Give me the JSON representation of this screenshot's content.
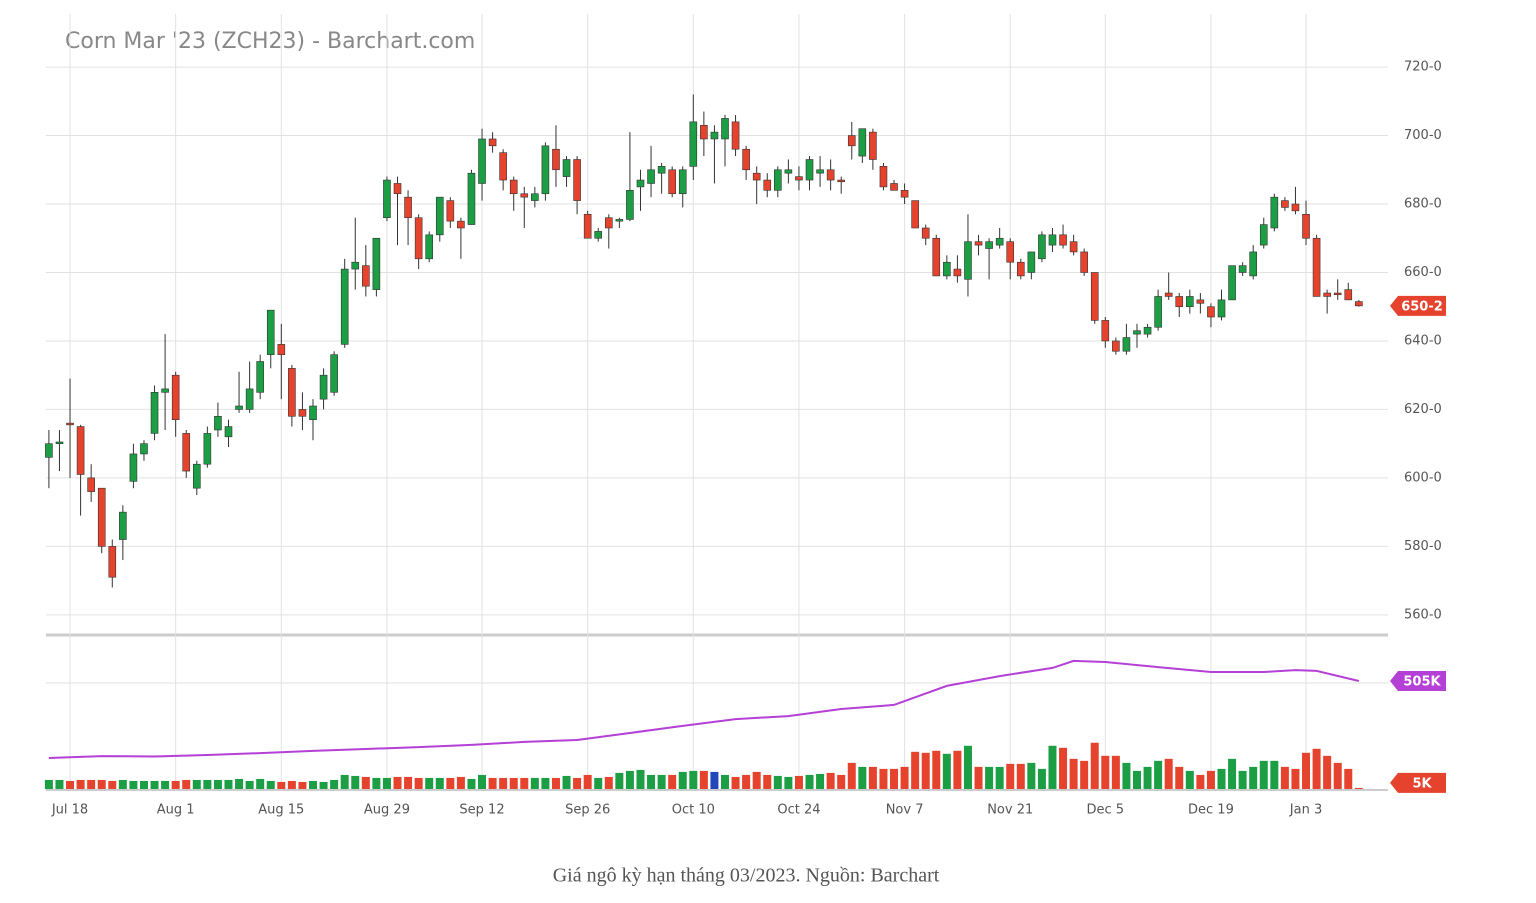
{
  "caption": "Giá ngô kỳ hạn tháng 03/2023. Nguồn: Barchart",
  "chart_data": [
    {
      "type": "candlestick",
      "title": "Corn Mar '23 (ZCH23) - Barchart.com",
      "categories": [
        null,
        null,
        "Jul 18",
        null,
        null,
        null,
        null,
        null,
        null,
        null,
        null,
        null,
        "Aug 1",
        null,
        null,
        null,
        null,
        null,
        null,
        null,
        null,
        null,
        "Aug 15",
        null,
        null,
        null,
        null,
        null,
        null,
        null,
        null,
        null,
        "Aug 29",
        null,
        null,
        null,
        null,
        null,
        null,
        null,
        null,
        "Sep 12",
        null,
        null,
        null,
        null,
        null,
        null,
        null,
        null,
        null,
        "Sep 26",
        null,
        null,
        null,
        null,
        null,
        null,
        null,
        null,
        null,
        "Oct 10",
        null,
        null,
        null,
        null,
        null,
        null,
        null,
        null,
        null,
        "Oct 24",
        null,
        null,
        null,
        null,
        null,
        null,
        null,
        null,
        null,
        "Nov 7",
        null,
        null,
        null,
        null,
        null,
        null,
        null,
        null,
        null,
        "Nov 21",
        null,
        null,
        null,
        null,
        null,
        null,
        null,
        null,
        "Dec 5",
        null,
        null,
        null,
        null,
        null,
        null,
        null,
        null,
        null,
        "Dec 19",
        null,
        null,
        null,
        null,
        null,
        null,
        null,
        null,
        "Jan 3",
        null,
        null,
        null,
        null,
        null
      ],
      "open": [
        606,
        610,
        616,
        615,
        600,
        597,
        580,
        582,
        599,
        607,
        613,
        625,
        630,
        613,
        597,
        604,
        614,
        612,
        620,
        620,
        625,
        636,
        639,
        632,
        620,
        617,
        623,
        625,
        639,
        661,
        662,
        655,
        676,
        686,
        682,
        676,
        664,
        671,
        681,
        675,
        674,
        686,
        699,
        695,
        687,
        683,
        681,
        683,
        696,
        688,
        693,
        677,
        670,
        676,
        675,
        675.5,
        685,
        686,
        689,
        690,
        683,
        691,
        703,
        699,
        699,
        704,
        696,
        689,
        687,
        684,
        689,
        688,
        687,
        689,
        690,
        687,
        700,
        694,
        701,
        691,
        686,
        684,
        681,
        673,
        670,
        659,
        661,
        658,
        669,
        667,
        668,
        669,
        663,
        660,
        664,
        668,
        671,
        669,
        666,
        660,
        646,
        640,
        637,
        642,
        642,
        644,
        654,
        653,
        650,
        652,
        650,
        647,
        652,
        660,
        659,
        668,
        673,
        681,
        680,
        677,
        670,
        654,
        654,
        655,
        651.5
      ],
      "high": [
        614,
        614,
        629,
        615.5,
        604,
        597,
        582,
        592,
        610,
        611,
        627,
        642,
        631,
        614,
        605,
        615,
        622,
        617,
        631,
        634,
        636,
        649,
        645,
        633,
        625,
        623,
        632,
        637,
        664,
        676,
        668,
        670,
        688,
        688,
        684,
        677,
        672,
        682,
        682,
        676,
        690,
        702,
        701,
        696,
        688,
        685,
        685,
        698,
        703,
        694,
        694,
        678,
        673,
        677,
        676,
        701,
        690,
        697,
        692,
        691,
        691,
        712,
        707,
        703,
        706,
        706,
        697,
        691,
        689,
        691,
        693,
        691,
        694,
        694,
        693,
        688,
        704,
        702,
        702,
        692,
        687,
        686,
        681,
        674,
        671,
        665,
        665,
        677,
        671,
        670,
        673,
        670,
        664,
        666,
        672,
        673,
        674,
        671,
        667,
        660,
        647,
        641,
        645,
        645,
        645,
        655,
        660,
        654,
        655,
        654,
        651,
        655,
        662,
        663,
        668,
        676,
        683,
        682,
        685,
        681,
        671,
        655,
        658,
        657,
        652
      ],
      "low": [
        597,
        602,
        600,
        589,
        593,
        578,
        568,
        576,
        597,
        605,
        611,
        614,
        612,
        600,
        595,
        603,
        612,
        609,
        619,
        619,
        623,
        632,
        623,
        615,
        614,
        611,
        620,
        624,
        638,
        655,
        653,
        653,
        675,
        668,
        668,
        661,
        663,
        669,
        673,
        664,
        674,
        681,
        695,
        684,
        678,
        673,
        679,
        681,
        685,
        685,
        677,
        670,
        669,
        667,
        673,
        675,
        678,
        682,
        683,
        682,
        679,
        687,
        694,
        686,
        691,
        694,
        687,
        680,
        682,
        682,
        686,
        684,
        684,
        685,
        684,
        683,
        693,
        692,
        690,
        684,
        684,
        680,
        673,
        668,
        659,
        658,
        657,
        653,
        665,
        658,
        667,
        658,
        658,
        658,
        663,
        666,
        667,
        665,
        659,
        645,
        638,
        636,
        636,
        638,
        641,
        643,
        652,
        647,
        648,
        648,
        644,
        646,
        652,
        659,
        658,
        667,
        672,
        678,
        677,
        668,
        653,
        648,
        652,
        652,
        650
      ],
      "close": [
        610,
        610.5,
        615.5,
        601,
        596,
        580,
        571,
        590,
        607,
        610,
        625,
        626,
        617,
        602,
        604,
        613,
        618,
        615,
        621,
        626,
        634,
        649,
        636,
        618,
        618,
        621,
        630,
        636,
        661,
        663,
        656,
        670,
        687,
        683,
        676,
        664,
        671,
        682,
        675,
        673,
        689,
        699,
        697,
        687,
        683,
        682,
        683,
        697,
        690,
        693,
        681,
        670,
        672,
        673,
        675.5,
        684,
        687,
        690,
        691,
        683,
        690,
        704,
        699,
        701,
        705,
        696,
        690,
        687,
        684,
        690,
        690,
        687,
        693,
        690,
        687,
        686.5,
        697,
        702,
        693,
        685,
        684,
        682,
        673,
        670,
        659,
        663,
        659,
        669,
        668,
        669,
        670,
        663,
        659,
        666,
        671,
        671,
        668,
        666,
        660,
        646,
        640,
        637,
        641,
        643,
        644,
        653,
        653,
        650,
        653,
        651,
        647,
        652,
        662,
        662,
        666,
        674,
        682,
        679,
        678,
        670,
        653,
        653,
        653.5,
        652,
        650.25
      ],
      "up_color": "#1c9e45",
      "down_color": "#e5432d",
      "ylim": [
        554.7,
        735.5
      ],
      "yticks": [
        {
          "value": 560,
          "label": "560-0"
        },
        {
          "value": 580,
          "label": "580-0"
        },
        {
          "value": 600,
          "label": "600-0"
        },
        {
          "value": 620,
          "label": "620-0"
        },
        {
          "value": 640,
          "label": "640-0"
        },
        {
          "value": 660,
          "label": "660-0"
        },
        {
          "value": 680,
          "label": "680-0"
        },
        {
          "value": 700,
          "label": "700-0"
        },
        {
          "value": 720,
          "label": "720-0"
        }
      ],
      "grid": true,
      "last_label": {
        "value": 650.25,
        "label": "650-2"
      }
    },
    {
      "type": "volume",
      "ylim": [
        0,
        720000
      ],
      "series": [
        {
          "kind": "bar",
          "highlight": {
            "index": 63,
            "color": "#2347b8"
          },
          "color": "#e5432d",
          "values": [
            42300,
            42300,
            37600,
            42300,
            42300,
            42300,
            37600,
            42300,
            37600,
            37600,
            37600,
            37600,
            37600,
            42300,
            42300,
            42300,
            42300,
            42300,
            47000,
            37600,
            47000,
            37600,
            32900,
            37600,
            32900,
            37600,
            32900,
            42300,
            65800,
            61100,
            56400,
            51700,
            51700,
            56400,
            56400,
            51700,
            51700,
            51700,
            51700,
            56400,
            47000,
            65800,
            51700,
            51700,
            51700,
            51700,
            51700,
            51700,
            51700,
            61100,
            51700,
            65800,
            51700,
            56400,
            75200,
            84600,
            89300,
            65800,
            65800,
            65800,
            79900,
            84600,
            84600,
            79900,
            65800,
            56400,
            65800,
            79900,
            65800,
            61100,
            56400,
            61100,
            65800,
            70500,
            75200,
            65800,
            122200,
            103400,
            103400,
            94000,
            94000,
            103400,
            173900,
            169200,
            178600,
            164500,
            178600,
            202100,
            103400,
            103400,
            103400,
            117500,
            117500,
            122200,
            94000,
            202100,
            192700,
            141000,
            131600,
            216200,
            155100,
            155100,
            122200,
            84600,
            103400,
            131600,
            141000,
            103400,
            84600,
            65800,
            84600,
            94000,
            141000,
            84600,
            103400,
            131600,
            131600,
            103400,
            94000,
            169200,
            188000,
            155100,
            122200,
            94000,
            5000
          ],
          "last_label": {
            "value": 5000,
            "label": "5K"
          }
        },
        {
          "kind": "line",
          "color": "#b540d6",
          "x": [
            0,
            5,
            10,
            15,
            20,
            25,
            30,
            35,
            40,
            45,
            50,
            55,
            60,
            65,
            70,
            75,
            80,
            85,
            90,
            95,
            97,
            100,
            105,
            110,
            115,
            118,
            120,
            124
          ],
          "values": [
            145000,
            154000,
            152000,
            159000,
            168000,
            178000,
            187000,
            196000,
            206000,
            220000,
            229000,
            262000,
            295000,
            327000,
            341000,
            374000,
            393000,
            482000,
            528000,
            566000,
            599000,
            594000,
            570000,
            547000,
            547000,
            556000,
            552000,
            505000
          ],
          "last_label": {
            "value": 505000,
            "label": "505K"
          }
        }
      ]
    }
  ]
}
